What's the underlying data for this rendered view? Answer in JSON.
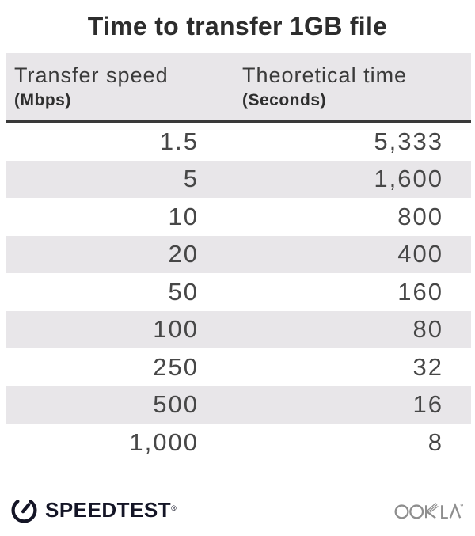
{
  "title": "Time to transfer 1GB file",
  "table": {
    "columns": [
      {
        "label": "Transfer speed",
        "unit": "(Mbps)"
      },
      {
        "label": "Theoretical time",
        "unit": "(Seconds)"
      }
    ],
    "rows": [
      {
        "speed": "1.5",
        "time": "5,333"
      },
      {
        "speed": "5",
        "time": "1,600"
      },
      {
        "speed": "10",
        "time": "800"
      },
      {
        "speed": "20",
        "time": "400"
      },
      {
        "speed": "50",
        "time": "160"
      },
      {
        "speed": "100",
        "time": "80"
      },
      {
        "speed": "250",
        "time": "32"
      },
      {
        "speed": "500",
        "time": "16"
      },
      {
        "speed": "1,000",
        "time": "8"
      }
    ]
  },
  "footer": {
    "speedtest": {
      "text": "SPEEDTEST",
      "registered": "®"
    },
    "ookla": {
      "text": "OOKLA",
      "registered": "®"
    }
  },
  "colors": {
    "stripe_bg": "#e8e6e9",
    "header_bg": "#e8e6e9",
    "header_border": "#3a3a3a",
    "title_text": "#2d2d2d",
    "number_text": "#474747",
    "speedtest_dark": "#141526",
    "ookla_gray": "#8e8e8e"
  },
  "chart_data": {
    "type": "table",
    "title": "Time to transfer 1GB file",
    "columns": [
      "Transfer speed (Mbps)",
      "Theoretical time (Seconds)"
    ],
    "rows": [
      [
        1.5,
        5333
      ],
      [
        5,
        1600
      ],
      [
        10,
        800
      ],
      [
        20,
        400
      ],
      [
        50,
        160
      ],
      [
        100,
        80
      ],
      [
        250,
        32
      ],
      [
        500,
        16
      ],
      [
        1000,
        8
      ]
    ]
  }
}
